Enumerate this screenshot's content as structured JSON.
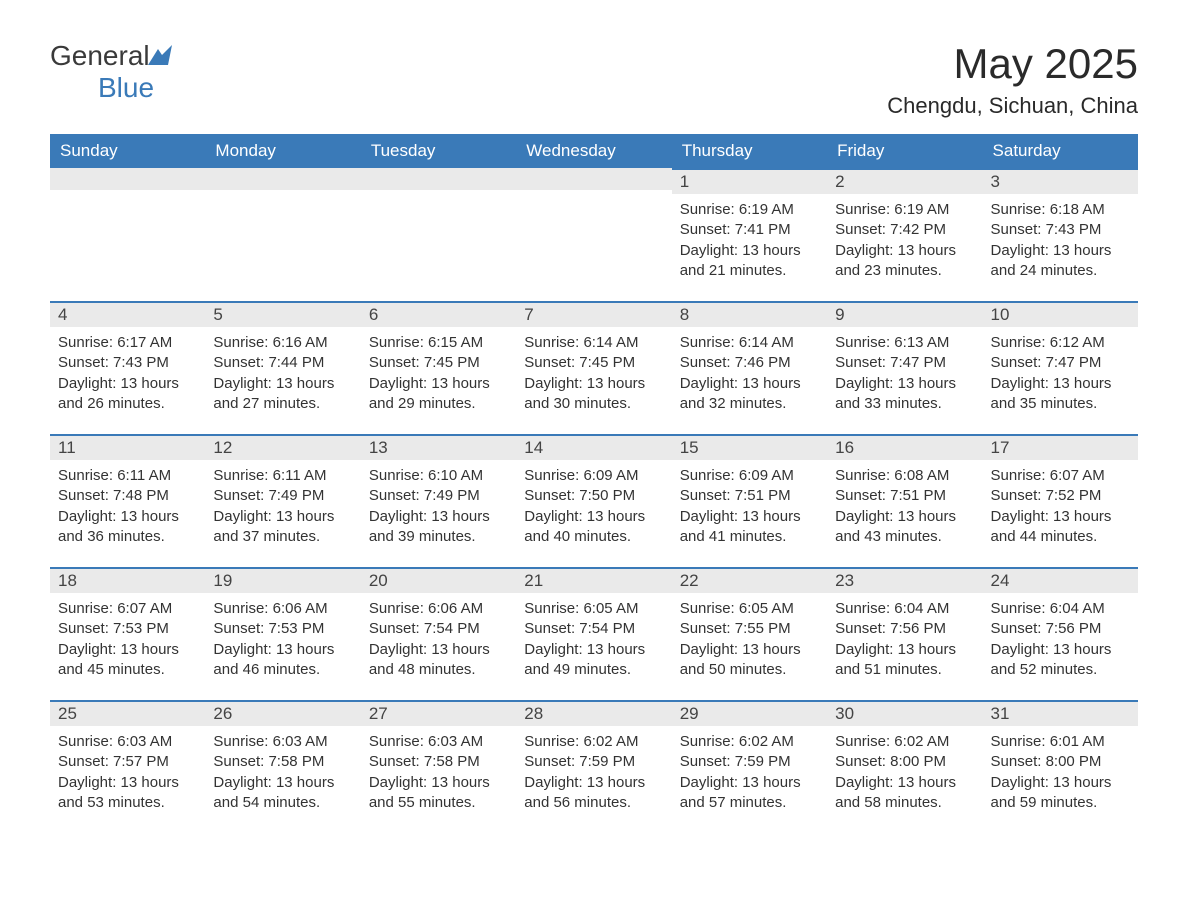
{
  "brand": {
    "name_part1": "General",
    "name_part2": "Blue",
    "icon_color": "#3a7ab8"
  },
  "header": {
    "title": "May 2025",
    "location": "Chengdu, Sichuan, China"
  },
  "colors": {
    "header_bg": "#3a7ab8",
    "header_text": "#ffffff",
    "daynum_bg": "#eaeaea",
    "border_accent": "#3a7ab8",
    "text": "#333333"
  },
  "day_names": [
    "Sunday",
    "Monday",
    "Tuesday",
    "Wednesday",
    "Thursday",
    "Friday",
    "Saturday"
  ],
  "weeks": [
    [
      null,
      null,
      null,
      null,
      {
        "num": "1",
        "sunrise": "6:19 AM",
        "sunset": "7:41 PM",
        "daylight": "13 hours and 21 minutes."
      },
      {
        "num": "2",
        "sunrise": "6:19 AM",
        "sunset": "7:42 PM",
        "daylight": "13 hours and 23 minutes."
      },
      {
        "num": "3",
        "sunrise": "6:18 AM",
        "sunset": "7:43 PM",
        "daylight": "13 hours and 24 minutes."
      }
    ],
    [
      {
        "num": "4",
        "sunrise": "6:17 AM",
        "sunset": "7:43 PM",
        "daylight": "13 hours and 26 minutes."
      },
      {
        "num": "5",
        "sunrise": "6:16 AM",
        "sunset": "7:44 PM",
        "daylight": "13 hours and 27 minutes."
      },
      {
        "num": "6",
        "sunrise": "6:15 AM",
        "sunset": "7:45 PM",
        "daylight": "13 hours and 29 minutes."
      },
      {
        "num": "7",
        "sunrise": "6:14 AM",
        "sunset": "7:45 PM",
        "daylight": "13 hours and 30 minutes."
      },
      {
        "num": "8",
        "sunrise": "6:14 AM",
        "sunset": "7:46 PM",
        "daylight": "13 hours and 32 minutes."
      },
      {
        "num": "9",
        "sunrise": "6:13 AM",
        "sunset": "7:47 PM",
        "daylight": "13 hours and 33 minutes."
      },
      {
        "num": "10",
        "sunrise": "6:12 AM",
        "sunset": "7:47 PM",
        "daylight": "13 hours and 35 minutes."
      }
    ],
    [
      {
        "num": "11",
        "sunrise": "6:11 AM",
        "sunset": "7:48 PM",
        "daylight": "13 hours and 36 minutes."
      },
      {
        "num": "12",
        "sunrise": "6:11 AM",
        "sunset": "7:49 PM",
        "daylight": "13 hours and 37 minutes."
      },
      {
        "num": "13",
        "sunrise": "6:10 AM",
        "sunset": "7:49 PM",
        "daylight": "13 hours and 39 minutes."
      },
      {
        "num": "14",
        "sunrise": "6:09 AM",
        "sunset": "7:50 PM",
        "daylight": "13 hours and 40 minutes."
      },
      {
        "num": "15",
        "sunrise": "6:09 AM",
        "sunset": "7:51 PM",
        "daylight": "13 hours and 41 minutes."
      },
      {
        "num": "16",
        "sunrise": "6:08 AM",
        "sunset": "7:51 PM",
        "daylight": "13 hours and 43 minutes."
      },
      {
        "num": "17",
        "sunrise": "6:07 AM",
        "sunset": "7:52 PM",
        "daylight": "13 hours and 44 minutes."
      }
    ],
    [
      {
        "num": "18",
        "sunrise": "6:07 AM",
        "sunset": "7:53 PM",
        "daylight": "13 hours and 45 minutes."
      },
      {
        "num": "19",
        "sunrise": "6:06 AM",
        "sunset": "7:53 PM",
        "daylight": "13 hours and 46 minutes."
      },
      {
        "num": "20",
        "sunrise": "6:06 AM",
        "sunset": "7:54 PM",
        "daylight": "13 hours and 48 minutes."
      },
      {
        "num": "21",
        "sunrise": "6:05 AM",
        "sunset": "7:54 PM",
        "daylight": "13 hours and 49 minutes."
      },
      {
        "num": "22",
        "sunrise": "6:05 AM",
        "sunset": "7:55 PM",
        "daylight": "13 hours and 50 minutes."
      },
      {
        "num": "23",
        "sunrise": "6:04 AM",
        "sunset": "7:56 PM",
        "daylight": "13 hours and 51 minutes."
      },
      {
        "num": "24",
        "sunrise": "6:04 AM",
        "sunset": "7:56 PM",
        "daylight": "13 hours and 52 minutes."
      }
    ],
    [
      {
        "num": "25",
        "sunrise": "6:03 AM",
        "sunset": "7:57 PM",
        "daylight": "13 hours and 53 minutes."
      },
      {
        "num": "26",
        "sunrise": "6:03 AM",
        "sunset": "7:58 PM",
        "daylight": "13 hours and 54 minutes."
      },
      {
        "num": "27",
        "sunrise": "6:03 AM",
        "sunset": "7:58 PM",
        "daylight": "13 hours and 55 minutes."
      },
      {
        "num": "28",
        "sunrise": "6:02 AM",
        "sunset": "7:59 PM",
        "daylight": "13 hours and 56 minutes."
      },
      {
        "num": "29",
        "sunrise": "6:02 AM",
        "sunset": "7:59 PM",
        "daylight": "13 hours and 57 minutes."
      },
      {
        "num": "30",
        "sunrise": "6:02 AM",
        "sunset": "8:00 PM",
        "daylight": "13 hours and 58 minutes."
      },
      {
        "num": "31",
        "sunrise": "6:01 AM",
        "sunset": "8:00 PM",
        "daylight": "13 hours and 59 minutes."
      }
    ]
  ],
  "labels": {
    "sunrise_prefix": "Sunrise: ",
    "sunset_prefix": "Sunset: ",
    "daylight_prefix": "Daylight: "
  }
}
